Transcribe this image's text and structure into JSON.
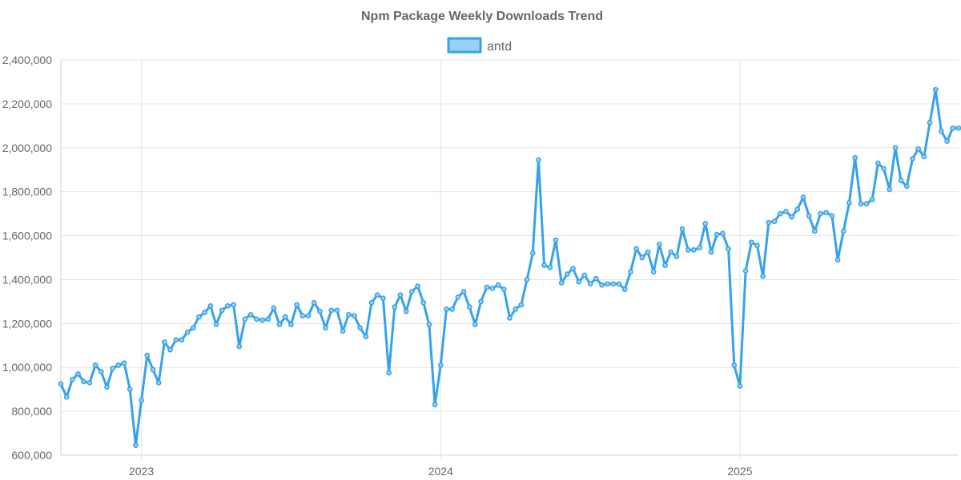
{
  "chart_data": {
    "type": "line",
    "title": "Npm Package Weekly Downloads Trend",
    "legend": {
      "position": "top-center"
    },
    "grid": true,
    "x_ticks": [
      {
        "label": "2023",
        "week": 14
      },
      {
        "label": "2024",
        "week": 66
      },
      {
        "label": "2025",
        "week": 118
      }
    ],
    "y_ticks": [
      600000,
      800000,
      1000000,
      1200000,
      1400000,
      1600000,
      1800000,
      2000000,
      2200000,
      2400000
    ],
    "y_tick_labels": [
      "600,000",
      "800,000",
      "1,000,000",
      "1,200,000",
      "1,400,000",
      "1,600,000",
      "1,800,000",
      "2,000,000",
      "2,200,000",
      "2,400,000"
    ],
    "ylim": [
      600000,
      2400000
    ],
    "x_range_weeks": [
      0,
      156
    ],
    "series": [
      {
        "name": "antd",
        "color": "#36a2eb",
        "fill": "#9ad0f5",
        "values": [
          925000,
          865000,
          945000,
          970000,
          935000,
          930000,
          1010000,
          980000,
          910000,
          995000,
          1010000,
          1020000,
          900000,
          645000,
          850000,
          1055000,
          990000,
          930000,
          1115000,
          1080000,
          1125000,
          1125000,
          1160000,
          1180000,
          1230000,
          1250000,
          1280000,
          1195000,
          1260000,
          1280000,
          1285000,
          1095000,
          1220000,
          1240000,
          1220000,
          1215000,
          1220000,
          1270000,
          1195000,
          1230000,
          1195000,
          1285000,
          1235000,
          1235000,
          1295000,
          1255000,
          1180000,
          1260000,
          1260000,
          1165000,
          1240000,
          1235000,
          1180000,
          1140000,
          1295000,
          1330000,
          1315000,
          975000,
          1275000,
          1330000,
          1255000,
          1345000,
          1370000,
          1295000,
          1195000,
          830000,
          1010000,
          1265000,
          1265000,
          1320000,
          1345000,
          1275000,
          1195000,
          1300000,
          1365000,
          1360000,
          1375000,
          1355000,
          1225000,
          1265000,
          1285000,
          1400000,
          1520000,
          1945000,
          1465000,
          1455000,
          1580000,
          1385000,
          1425000,
          1450000,
          1390000,
          1420000,
          1380000,
          1405000,
          1375000,
          1380000,
          1380000,
          1380000,
          1355000,
          1435000,
          1540000,
          1500000,
          1525000,
          1435000,
          1560000,
          1465000,
          1525000,
          1505000,
          1630000,
          1535000,
          1535000,
          1545000,
          1655000,
          1525000,
          1605000,
          1610000,
          1540000,
          1010000,
          915000,
          1440000,
          1570000,
          1555000,
          1415000,
          1660000,
          1665000,
          1700000,
          1710000,
          1685000,
          1720000,
          1775000,
          1690000,
          1620000,
          1700000,
          1705000,
          1690000,
          1490000,
          1620000,
          1750000,
          1955000,
          1745000,
          1745000,
          1765000,
          1930000,
          1905000,
          1810000,
          2000000,
          1850000,
          1825000,
          1950000,
          1995000,
          1960000,
          2115000,
          2265000,
          2075000,
          2030000,
          2090000,
          2090000
        ]
      }
    ]
  }
}
